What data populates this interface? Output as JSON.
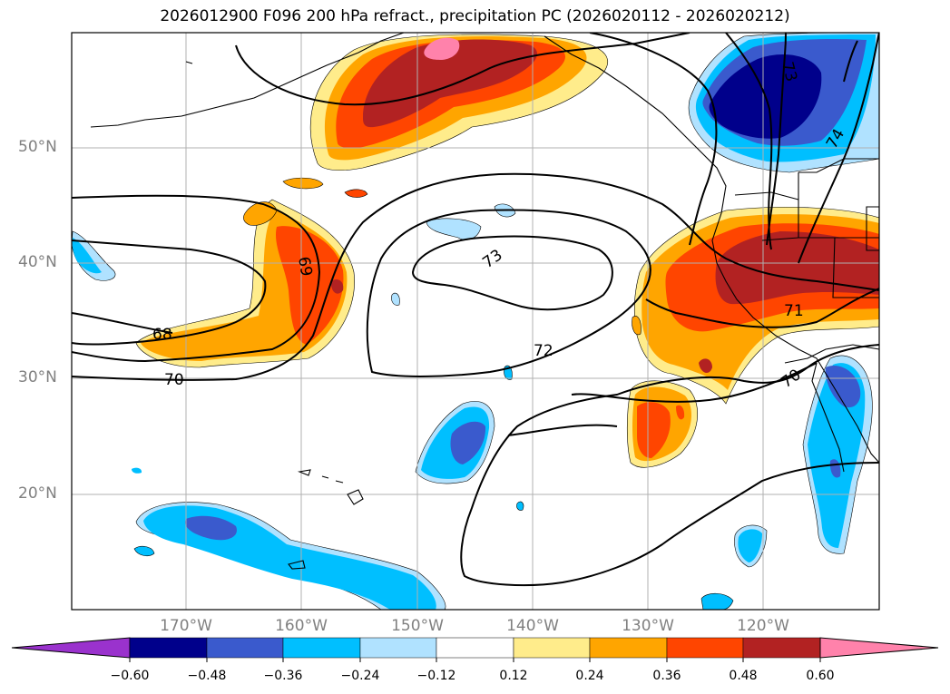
{
  "title": "2026012900 F096 200 hPa refract., precipitation PC (2026020112 - 2026020212)",
  "map": {
    "lat_labels": [
      "50°N",
      "40°N",
      "30°N",
      "20°N"
    ],
    "lon_labels": [
      "170°W",
      "160°W",
      "150°W",
      "140°W",
      "130°W",
      "120°W"
    ],
    "contour_labels": [
      "68",
      "69",
      "70",
      "72",
      "73",
      "71",
      "70",
      "74",
      "73"
    ]
  },
  "colorbar": {
    "ticks": [
      "−0.60",
      "−0.48",
      "−0.36",
      "−0.24",
      "−0.12",
      "0.12",
      "0.24",
      "0.36",
      "0.48",
      "0.60"
    ],
    "colors": [
      "#9a32cd",
      "#00008b",
      "#3a5acd",
      "#00bfff",
      "#b0e2ff",
      "#ffffff",
      "#ffec8b",
      "#ffa500",
      "#ff4500",
      "#b22222",
      "#ff82ab"
    ]
  }
}
